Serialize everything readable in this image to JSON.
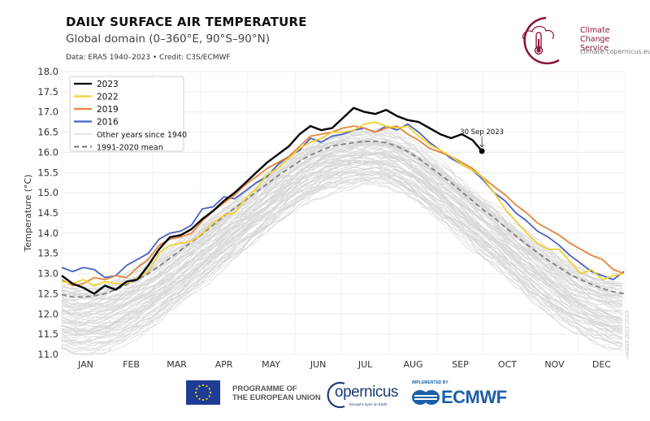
{
  "header": {
    "title": "DAILY SURFACE AIR TEMPERATURE",
    "subtitle": "Global domain (0–360°E, 90°S–90°N)",
    "credit": "Data: ERA5 1940–2023 • Credit: C3S/ECMWF"
  },
  "logo": {
    "name_line1": "Climate",
    "name_line2": "Change Service",
    "url": "climate.copernicus.eu",
    "icon": "thermometer-cloud-icon",
    "color": "#8a1538"
  },
  "footer": {
    "eu_line1": "PROGRAMME OF",
    "eu_line2": "THE EUROPEAN UNION",
    "copernicus_word": "opernicus",
    "copernicus_tagline": "Europe's eyes on Earth",
    "ecmwf_implemented": "IMPLEMENTED BY",
    "ecmwf_word": "ECMWF"
  },
  "watermark": "created 2023-10-03",
  "chart_data": {
    "type": "line",
    "title": "DAILY SURFACE AIR TEMPERATURE",
    "subtitle": "Global domain (0–360°E, 90°S–90°N)",
    "xlabel": "",
    "ylabel": "Temperature (°C)",
    "ylim": [
      11.0,
      18.0
    ],
    "yticks": [
      "11.0",
      "11.5",
      "12.0",
      "12.5",
      "13.0",
      "13.5",
      "14.0",
      "14.5",
      "15.0",
      "15.5",
      "16.0",
      "16.5",
      "17.0",
      "17.5",
      "18.0"
    ],
    "xlim_day_of_year": [
      1,
      365
    ],
    "xticks": [
      "JAN",
      "FEB",
      "MAR",
      "APR",
      "MAY",
      "JUN",
      "JUL",
      "AUG",
      "SEP",
      "OCT",
      "NOV",
      "DEC"
    ],
    "grid": true,
    "legend_position": "top-left",
    "annotation": {
      "text": "30 Sep 2023",
      "day": 273,
      "value": 16.03
    },
    "x_day_of_year": [
      1,
      8,
      15,
      22,
      29,
      36,
      43,
      50,
      57,
      64,
      71,
      78,
      85,
      92,
      99,
      106,
      113,
      120,
      127,
      134,
      141,
      148,
      155,
      162,
      169,
      176,
      183,
      190,
      197,
      204,
      211,
      218,
      225,
      232,
      239,
      246,
      253,
      260,
      267,
      273,
      281,
      288,
      295,
      302,
      309,
      316,
      323,
      330,
      337,
      344,
      351,
      358,
      365
    ],
    "series": [
      {
        "name": "2023",
        "color": "#000000",
        "width": 2.4,
        "values": [
          12.95,
          12.75,
          12.65,
          12.5,
          12.7,
          12.6,
          12.8,
          12.85,
          13.2,
          13.6,
          13.9,
          13.95,
          14.1,
          14.35,
          14.55,
          14.8,
          15.0,
          15.25,
          15.5,
          15.75,
          15.95,
          16.15,
          16.45,
          16.65,
          16.55,
          16.6,
          16.85,
          17.1,
          17.0,
          16.95,
          17.05,
          16.9,
          16.8,
          16.75,
          16.6,
          16.45,
          16.35,
          16.45,
          16.3,
          16.03
        ]
      },
      {
        "name": "2022",
        "color": "#f2d22e",
        "width": 1.8,
        "values": [
          12.8,
          12.75,
          12.85,
          12.7,
          12.8,
          12.75,
          12.75,
          12.9,
          13.05,
          13.5,
          13.7,
          13.75,
          13.8,
          14.0,
          14.25,
          14.45,
          14.5,
          14.85,
          15.1,
          15.45,
          15.6,
          15.85,
          16.1,
          16.25,
          16.35,
          16.5,
          16.5,
          16.55,
          16.7,
          16.75,
          16.65,
          16.6,
          16.65,
          16.4,
          16.2,
          16.05,
          15.9,
          15.7,
          15.55,
          15.4,
          15.0,
          14.6,
          14.3,
          14.0,
          13.75,
          13.6,
          13.6,
          13.3,
          13.0,
          13.1,
          12.85,
          12.95,
          13.0
        ]
      },
      {
        "name": "2019",
        "color": "#e8823a",
        "width": 1.8,
        "values": [
          12.85,
          12.7,
          12.75,
          12.9,
          12.85,
          12.95,
          12.9,
          13.15,
          13.35,
          13.7,
          13.85,
          13.9,
          14.0,
          14.3,
          14.55,
          14.75,
          14.95,
          15.2,
          15.4,
          15.6,
          15.75,
          15.9,
          16.15,
          16.4,
          16.45,
          16.5,
          16.6,
          16.65,
          16.6,
          16.5,
          16.6,
          16.65,
          16.45,
          16.3,
          16.1,
          16.0,
          15.9,
          15.75,
          15.6,
          15.4,
          15.15,
          14.95,
          14.7,
          14.5,
          14.25,
          14.1,
          13.95,
          13.75,
          13.6,
          13.45,
          13.35,
          13.1,
          13.0
        ]
      },
      {
        "name": "2016",
        "color": "#4a63c4",
        "width": 1.8,
        "values": [
          13.15,
          13.05,
          13.15,
          13.1,
          12.9,
          12.95,
          13.2,
          13.35,
          13.5,
          13.85,
          14.0,
          14.05,
          14.2,
          14.6,
          14.65,
          14.9,
          14.85,
          15.05,
          15.25,
          15.4,
          15.7,
          15.9,
          16.05,
          16.35,
          16.25,
          16.4,
          16.45,
          16.55,
          16.6,
          16.5,
          16.65,
          16.55,
          16.7,
          16.5,
          16.25,
          16.05,
          15.85,
          15.7,
          15.55,
          15.35,
          15.0,
          14.8,
          14.5,
          14.3,
          14.05,
          13.9,
          13.7,
          13.45,
          13.25,
          13.05,
          12.95,
          12.85,
          13.05
        ]
      },
      {
        "name": "1991-2020 mean",
        "color": "#808080",
        "width": 1.8,
        "dashed": true,
        "values": [
          12.48,
          12.42,
          12.42,
          12.45,
          12.5,
          12.6,
          12.72,
          12.85,
          13.0,
          13.18,
          13.38,
          13.58,
          13.78,
          13.98,
          14.2,
          14.42,
          14.62,
          14.82,
          15.02,
          15.22,
          15.42,
          15.6,
          15.78,
          15.93,
          16.05,
          16.15,
          16.2,
          16.24,
          16.27,
          16.27,
          16.24,
          16.15,
          16.02,
          15.85,
          15.65,
          15.45,
          15.25,
          15.02,
          14.8,
          14.6,
          14.38,
          14.15,
          13.93,
          13.72,
          13.52,
          13.33,
          13.15,
          12.98,
          12.85,
          12.73,
          12.63,
          12.55,
          12.5
        ]
      },
      {
        "name": "Other years since 1940",
        "color": "#d6d6d6",
        "width": 0.8,
        "values_description": "82 other yearly traces forming a band roughly 0.2–1.2 °C below the 1991–2020 mean to slightly above it",
        "band_offset_range": [
          -1.2,
          0.25
        ]
      }
    ],
    "legend": [
      "2023",
      "2022",
      "2019",
      "2016",
      "Other years since 1940",
      "1991-2020 mean"
    ]
  }
}
